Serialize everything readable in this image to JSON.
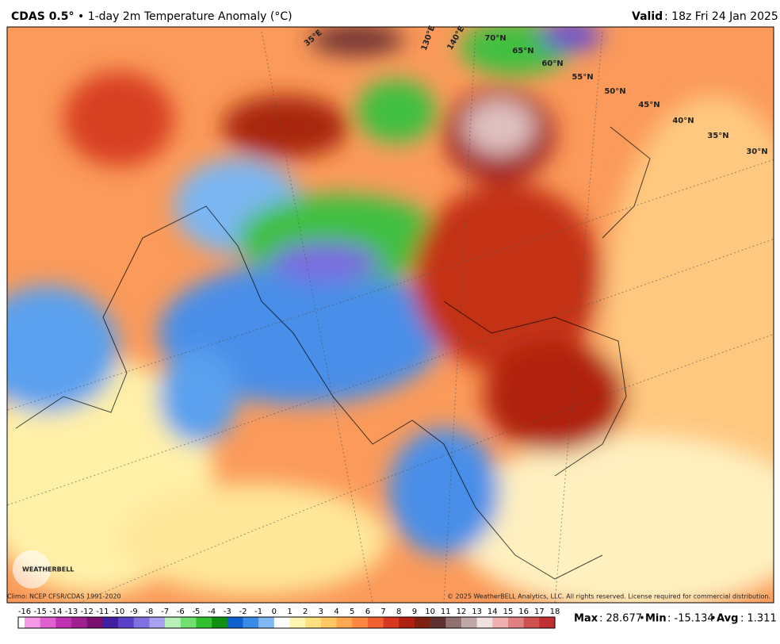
{
  "header": {
    "model": "CDAS 0.5°",
    "title": "• 1-day 2m Temperature Anomaly (°C)",
    "valid_label": "Valid",
    "valid_time": ": 18z Fri 24 Jan 2025"
  },
  "map": {
    "lat_labels": [
      "70°N",
      "65°N",
      "60°N",
      "55°N",
      "50°N",
      "45°N",
      "40°N",
      "35°N",
      "30°N"
    ],
    "lon_labels": [
      "35°E",
      "130°E",
      "140°E"
    ],
    "logo": "WEATHERBELL"
  },
  "footer": {
    "climo": "Climo: NCEP CFSR/CDAS 1991-2020",
    "copyright": "© 2025 WeatherBELL Analytics, LLC. All rights reserved. License required for commercial distribution.",
    "max_label": "Max",
    "max": ": 28.677",
    "min_label": "Min",
    "min": ": -15.134",
    "avg_label": "Avg",
    "avg": ": 1.311",
    "sep": "•"
  },
  "colorbar": {
    "labels": [
      -16,
      -15,
      -14,
      -13,
      -12,
      -11,
      -10,
      -9,
      -8,
      -7,
      -6,
      -5,
      -4,
      -3,
      -2,
      -1,
      0,
      1,
      2,
      3,
      4,
      5,
      6,
      7,
      8,
      9,
      10,
      11,
      12,
      13,
      14,
      15,
      16,
      17,
      18
    ],
    "colors": [
      "#f598e8",
      "#e060d0",
      "#c030b0",
      "#a0208f",
      "#7a1070",
      "#4020a0",
      "#5a40c8",
      "#8070e0",
      "#a8a0f0",
      "#b8f0b8",
      "#70e070",
      "#30c030",
      "#109010",
      "#1060d0",
      "#3a8ae8",
      "#80b8f5",
      "#ffffff",
      "#fff5b0",
      "#ffe080",
      "#ffc860",
      "#ffa850",
      "#ff8840",
      "#f06030",
      "#d83820",
      "#b02010",
      "#802010",
      "#603030",
      "#907070",
      "#c0a8a8",
      "#f0e0e0",
      "#f0b0b0",
      "#e08080",
      "#d05050",
      "#c03030"
    ]
  }
}
